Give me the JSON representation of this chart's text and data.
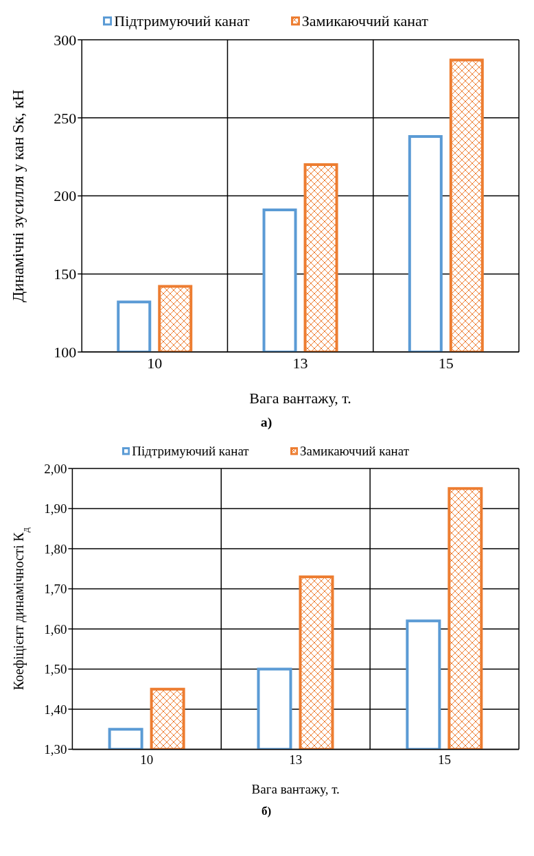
{
  "chart_data": [
    {
      "type": "bar",
      "categories": [
        "10",
        "13",
        "15"
      ],
      "xlabel": "Вага вантажу, т.",
      "ylabel": "Динамічні зусилля  у кан Sк, кН",
      "ylim": [
        100,
        300
      ],
      "yticks": [
        100,
        150,
        200,
        250,
        300
      ],
      "grid": true,
      "legend": "top",
      "annotations": [
        "а)"
      ],
      "series": [
        {
          "name": "Підтримуючий канат",
          "color": "#5b9bd5",
          "values": [
            132,
            191,
            238
          ]
        },
        {
          "name": "Замикаюччий  канат",
          "color": "#ed7d31",
          "values": [
            142,
            220,
            287
          ]
        }
      ]
    },
    {
      "type": "bar",
      "categories": [
        "10",
        "13",
        "15"
      ],
      "xlabel": "Вага вантажу, т.",
      "ylabel": "Коефіцієнт динамічності  К$_{д}$",
      "ylim": [
        1.3,
        2.0
      ],
      "yticks": [
        {
          "value": 1.3,
          "label": "1,30"
        },
        {
          "value": 1.4,
          "label": "1,40"
        },
        {
          "value": 1.5,
          "label": "1,50"
        },
        {
          "value": 1.6,
          "label": "1,60"
        },
        {
          "value": 1.7,
          "label": "1,70"
        },
        {
          "value": 1.8,
          "label": "1,80"
        },
        {
          "value": 1.9,
          "label": "1,90"
        },
        {
          "value": 2.0,
          "label": "2,00"
        }
      ],
      "grid": true,
      "legend": "top",
      "annotations": [
        "б)"
      ],
      "series": [
        {
          "name": "Підтримуючий канат",
          "color": "#5b9bd5",
          "values": [
            1.35,
            1.5,
            1.62
          ]
        },
        {
          "name": "Замикаюччий  канат",
          "color": "#ed7d31",
          "values": [
            1.45,
            1.73,
            1.95
          ]
        }
      ]
    }
  ]
}
